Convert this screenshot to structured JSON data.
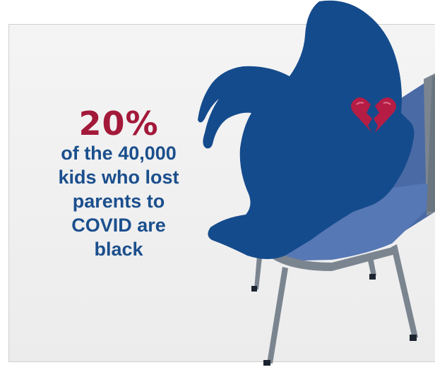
{
  "infographic": {
    "stat": "20%",
    "caption": "of the 40,000\nkids who lost\nparents to\nCOVID are\nblack"
  },
  "colors": {
    "silhouette": "#144b8c",
    "stat": "#a3193a",
    "caption": "#1b4f8d",
    "chair_seat": "#5678b4",
    "chair_frame": "#7b8590",
    "heart": "#b51d45"
  },
  "icons": {
    "figure": "sad-child-silhouette",
    "chair": "chair-illustration",
    "heart": "broken-heart-icon"
  }
}
